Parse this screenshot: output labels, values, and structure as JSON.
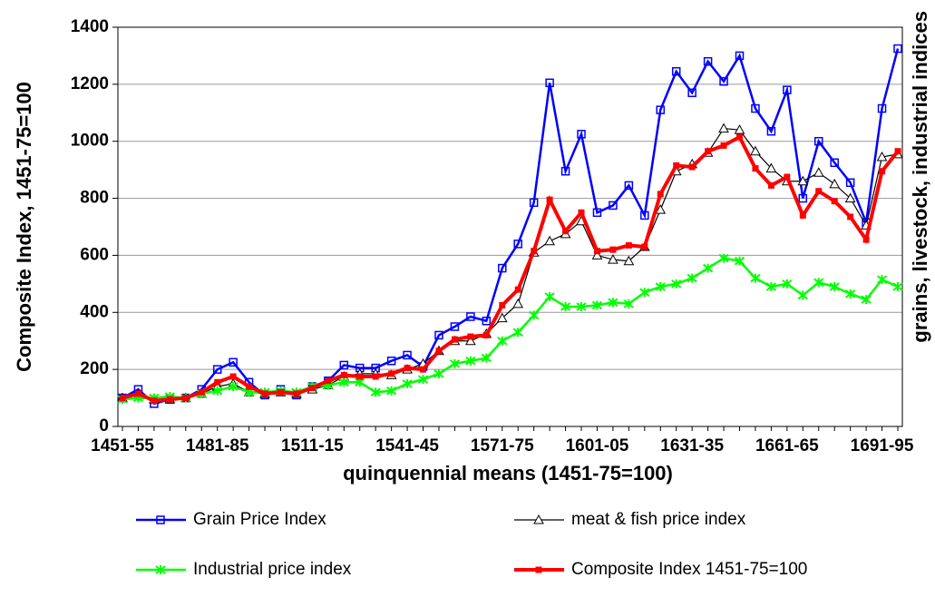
{
  "chart_data": {
    "type": "line",
    "x_label": "quinquennial means (1451-75=100)",
    "y_label": "Composite Index, 1451-75=100",
    "y2_label": "grains, livestock, industrial indices",
    "categories": [
      "1451-55",
      null,
      null,
      null,
      null,
      null,
      "1481-85",
      null,
      null,
      null,
      null,
      null,
      "1511-15",
      null,
      null,
      null,
      null,
      null,
      "1541-45",
      null,
      null,
      null,
      null,
      null,
      "1571-75",
      null,
      null,
      null,
      null,
      null,
      "1601-05",
      null,
      null,
      null,
      null,
      null,
      "1631-35",
      null,
      null,
      null,
      null,
      null,
      "1661-65",
      null,
      null,
      null,
      null,
      null,
      "1691-95",
      null
    ],
    "ylim": [
      0,
      1400
    ],
    "yticks": [
      0,
      200,
      400,
      600,
      800,
      1000,
      1200,
      1400
    ],
    "grid": true,
    "legend": "bottom",
    "series": [
      {
        "name": "Grain Price Index",
        "color": "#0000ff",
        "marker": "square",
        "values": [
          100,
          130,
          80,
          95,
          100,
          130,
          200,
          225,
          155,
          110,
          130,
          110,
          140,
          160,
          215,
          205,
          205,
          230,
          250,
          210,
          320,
          350,
          385,
          370,
          555,
          640,
          785,
          1205,
          895,
          1025,
          750,
          775,
          845,
          740,
          1110,
          1245,
          1170,
          1280,
          1210,
          1300,
          1115,
          1035,
          1180,
          800,
          1000,
          925,
          855,
          715,
          1115,
          1325
        ]
      },
      {
        "name": "meat & fish price index",
        "color": "#000000",
        "marker": "triangle",
        "values": [
          100,
          110,
          95,
          95,
          100,
          115,
          140,
          150,
          120,
          115,
          120,
          115,
          130,
          145,
          175,
          185,
          185,
          180,
          200,
          220,
          265,
          300,
          300,
          325,
          380,
          430,
          610,
          650,
          675,
          720,
          600,
          585,
          580,
          630,
          760,
          895,
          920,
          960,
          1045,
          1040,
          965,
          905,
          860,
          860,
          890,
          850,
          800,
          705,
          945,
          955
        ]
      },
      {
        "name": "Industrial price index",
        "color": "#00ff00",
        "marker": "star",
        "values": [
          95,
          100,
          100,
          105,
          100,
          115,
          125,
          140,
          120,
          120,
          125,
          120,
          140,
          145,
          155,
          155,
          120,
          125,
          150,
          165,
          185,
          220,
          230,
          240,
          300,
          330,
          390,
          455,
          420,
          420,
          425,
          435,
          430,
          470,
          490,
          500,
          520,
          555,
          590,
          580,
          520,
          490,
          500,
          460,
          505,
          490,
          465,
          445,
          515,
          490
        ]
      },
      {
        "name": "Composite Index 1451-75=100",
        "color": "#ff0000",
        "marker": "filled-square",
        "values": [
          100,
          115,
          90,
          95,
          100,
          120,
          155,
          175,
          140,
          115,
          120,
          115,
          135,
          160,
          180,
          175,
          175,
          185,
          205,
          200,
          265,
          305,
          315,
          320,
          425,
          480,
          615,
          795,
          685,
          750,
          615,
          620,
          635,
          630,
          815,
          915,
          910,
          965,
          985,
          1015,
          905,
          845,
          875,
          740,
          825,
          790,
          735,
          655,
          895,
          965
        ]
      }
    ]
  }
}
